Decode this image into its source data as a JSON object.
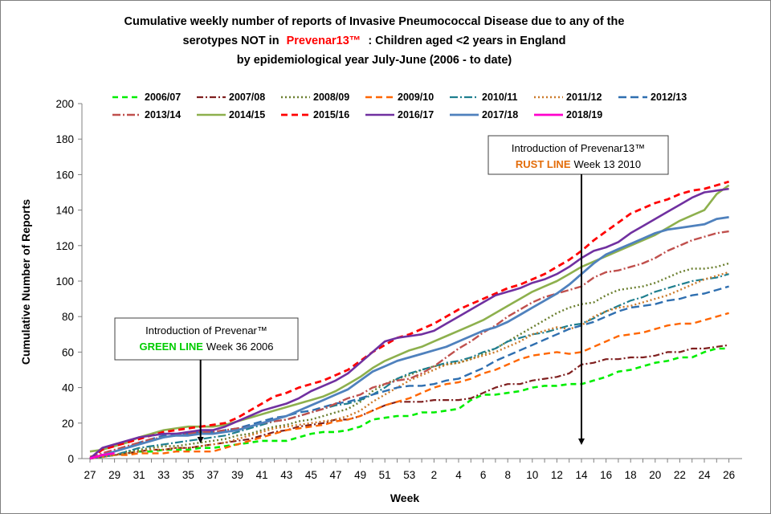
{
  "chart_data": {
    "type": "line",
    "title_lines": [
      "Cumulative weekly number of reports of Invasive Pneumococcal Disease due to any of the",
      "serotypes NOT in",
      "Prevenar13™",
      ": Children aged <2 years in England",
      "by epidemiological year July-June (2006 - to date)"
    ],
    "xlabel": "Week",
    "ylabel": "Cumulative Number of Reports",
    "ylim": [
      0,
      200
    ],
    "yticks": [
      0,
      20,
      40,
      60,
      80,
      100,
      120,
      140,
      160,
      180,
      200
    ],
    "week_sequence": [
      "27",
      "28",
      "29",
      "30",
      "31",
      "32",
      "33",
      "34",
      "35",
      "36",
      "37",
      "38",
      "39",
      "40",
      "41",
      "42",
      "43",
      "44",
      "45",
      "46",
      "47",
      "48",
      "49",
      "50",
      "51",
      "52",
      "53",
      "1",
      "2",
      "3",
      "4",
      "5",
      "6",
      "7",
      "8",
      "9",
      "10",
      "11",
      "12",
      "13",
      "14",
      "15",
      "16",
      "17",
      "18",
      "19",
      "20",
      "21",
      "22",
      "23",
      "24",
      "25",
      "26"
    ],
    "xtick_labels": [
      "27",
      "29",
      "31",
      "33",
      "35",
      "37",
      "39",
      "41",
      "43",
      "45",
      "47",
      "49",
      "51",
      "53",
      "2",
      "4",
      "6",
      "8",
      "10",
      "12",
      "14",
      "16",
      "18",
      "20",
      "22",
      "24",
      "26"
    ],
    "grid": false,
    "legend_position": "top",
    "series": [
      {
        "name": "2006/07",
        "color": "#00ee00",
        "dash": "7,5",
        "width": 2.6,
        "values": [
          0,
          1,
          2,
          3,
          4,
          4,
          5,
          5,
          5,
          6,
          6,
          7,
          8,
          9,
          10,
          10,
          10,
          12,
          14,
          15,
          15,
          16,
          18,
          22,
          23,
          24,
          24,
          26,
          26,
          27,
          28,
          33,
          36,
          36,
          37,
          38,
          40,
          41,
          41,
          42,
          42,
          44,
          46,
          49,
          50,
          52,
          54,
          55,
          57,
          57,
          60,
          62,
          62
        ]
      },
      {
        "name": "2007/08",
        "color": "#7f1f1f",
        "dash": "8,3,2,3",
        "width": 2.2,
        "values": [
          0,
          1,
          2,
          3,
          4,
          5,
          5,
          6,
          6,
          7,
          8,
          9,
          10,
          11,
          13,
          15,
          16,
          18,
          19,
          20,
          22,
          22,
          24,
          27,
          30,
          32,
          32,
          32,
          33,
          33,
          33,
          34,
          37,
          40,
          42,
          42,
          44,
          45,
          46,
          48,
          53,
          54,
          56,
          56,
          57,
          57,
          58,
          60,
          60,
          62,
          62,
          63,
          64
        ]
      },
      {
        "name": "2008/09",
        "color": "#6b7f2f",
        "dash": "2,3",
        "width": 2.4,
        "values": [
          0,
          1,
          2,
          4,
          5,
          6,
          7,
          7,
          8,
          9,
          10,
          11,
          13,
          14,
          16,
          18,
          19,
          21,
          22,
          24,
          26,
          28,
          32,
          38,
          42,
          45,
          47,
          50,
          52,
          53,
          54,
          56,
          59,
          62,
          66,
          70,
          74,
          78,
          82,
          85,
          87,
          88,
          92,
          95,
          96,
          97,
          99,
          102,
          105,
          107,
          107,
          108,
          110
        ]
      },
      {
        "name": "2009/10",
        "color": "#ff6600",
        "dash": "8,5",
        "width": 2.4,
        "values": [
          0,
          1,
          2,
          2,
          3,
          3,
          3,
          4,
          4,
          4,
          4,
          6,
          8,
          10,
          12,
          14,
          16,
          17,
          18,
          19,
          21,
          22,
          24,
          27,
          30,
          32,
          34,
          37,
          40,
          42,
          43,
          45,
          48,
          50,
          53,
          56,
          58,
          59,
          60,
          59,
          60,
          63,
          66,
          69,
          70,
          71,
          73,
          75,
          76,
          76,
          78,
          80,
          82
        ]
      },
      {
        "name": "2010/11",
        "color": "#1f7f8f",
        "dash": "10,3,2,3",
        "width": 2.2,
        "values": [
          0,
          1,
          2,
          4,
          6,
          7,
          8,
          9,
          10,
          11,
          12,
          13,
          15,
          17,
          19,
          21,
          22,
          24,
          26,
          28,
          30,
          31,
          33,
          36,
          40,
          45,
          48,
          50,
          52,
          54,
          55,
          57,
          60,
          62,
          66,
          68,
          70,
          71,
          73,
          75,
          76,
          79,
          83,
          86,
          89,
          91,
          94,
          96,
          98,
          100,
          101,
          102,
          104
        ]
      },
      {
        "name": "2011/12",
        "color": "#cc7a2a",
        "dash": "2,3",
        "width": 2.4,
        "values": [
          0,
          1,
          2,
          3,
          4,
          5,
          5,
          6,
          6,
          7,
          8,
          9,
          11,
          13,
          15,
          17,
          18,
          19,
          20,
          21,
          22,
          24,
          27,
          32,
          36,
          40,
          44,
          47,
          50,
          53,
          54,
          56,
          58,
          60,
          63,
          66,
          70,
          72,
          74,
          73,
          75,
          80,
          83,
          85,
          86,
          88,
          90,
          92,
          95,
          98,
          101,
          103,
          105
        ]
      },
      {
        "name": "2012/13",
        "color": "#2f6fb0",
        "dash": "10,5",
        "width": 2.4,
        "values": [
          0,
          2,
          4,
          6,
          9,
          11,
          13,
          14,
          14,
          15,
          15,
          16,
          17,
          19,
          21,
          23,
          24,
          26,
          27,
          29,
          31,
          32,
          34,
          36,
          38,
          40,
          41,
          41,
          42,
          44,
          45,
          48,
          51,
          55,
          58,
          61,
          64,
          67,
          70,
          73,
          75,
          77,
          80,
          83,
          85,
          86,
          87,
          89,
          90,
          92,
          93,
          95,
          97
        ]
      },
      {
        "name": "2013/14",
        "color": "#c0504d",
        "dash": "10,3,2,3",
        "width": 2.4,
        "values": [
          1,
          3,
          5,
          7,
          9,
          11,
          12,
          13,
          14,
          15,
          15,
          16,
          17,
          18,
          20,
          21,
          22,
          24,
          26,
          28,
          31,
          34,
          36,
          40,
          42,
          44,
          45,
          48,
          52,
          57,
          62,
          66,
          71,
          75,
          80,
          84,
          88,
          91,
          93,
          95,
          97,
          102,
          105,
          106,
          108,
          110,
          113,
          117,
          120,
          123,
          125,
          127,
          128
        ]
      },
      {
        "name": "2014/15",
        "color": "#8db04d",
        "dash": "",
        "width": 2.6,
        "values": [
          4,
          5,
          7,
          9,
          12,
          14,
          16,
          17,
          18,
          18,
          18,
          19,
          21,
          23,
          25,
          27,
          29,
          31,
          33,
          35,
          38,
          42,
          46,
          51,
          55,
          58,
          61,
          63,
          66,
          69,
          72,
          75,
          78,
          82,
          86,
          90,
          94,
          97,
          100,
          104,
          108,
          111,
          114,
          117,
          120,
          123,
          126,
          130,
          134,
          137,
          140,
          149,
          154
        ]
      },
      {
        "name": "2015/16",
        "color": "#ff0000",
        "dash": "8,5",
        "width": 2.8,
        "values": [
          0,
          5,
          7,
          9,
          11,
          13,
          15,
          16,
          17,
          18,
          19,
          20,
          23,
          27,
          31,
          35,
          37,
          40,
          42,
          44,
          47,
          50,
          55,
          60,
          64,
          68,
          70,
          73,
          76,
          80,
          84,
          87,
          90,
          93,
          96,
          98,
          101,
          104,
          108,
          112,
          117,
          123,
          128,
          133,
          138,
          141,
          144,
          146,
          149,
          151,
          152,
          154,
          156
        ]
      },
      {
        "name": "2016/17",
        "color": "#7030a0",
        "dash": "",
        "width": 2.6,
        "values": [
          0,
          6,
          8,
          10,
          12,
          13,
          14,
          14,
          15,
          16,
          16,
          18,
          21,
          24,
          27,
          29,
          31,
          34,
          38,
          41,
          44,
          48,
          54,
          60,
          66,
          68,
          69,
          70,
          72,
          76,
          80,
          84,
          88,
          92,
          94,
          96,
          99,
          101,
          104,
          108,
          113,
          117,
          119,
          122,
          127,
          131,
          135,
          139,
          143,
          147,
          150,
          151,
          152
        ]
      },
      {
        "name": "2017/18",
        "color": "#4f81bd",
        "dash": "",
        "width": 2.8,
        "values": [
          0,
          2,
          4,
          6,
          8,
          10,
          12,
          13,
          13,
          14,
          14,
          15,
          16,
          18,
          20,
          22,
          24,
          27,
          30,
          33,
          36,
          39,
          44,
          49,
          52,
          55,
          57,
          59,
          61,
          63,
          66,
          69,
          72,
          74,
          77,
          81,
          85,
          89,
          93,
          98,
          104,
          110,
          115,
          118,
          121,
          124,
          127,
          129,
          130,
          131,
          132,
          135,
          136
        ]
      },
      {
        "name": "2018/19",
        "color": "#ff00cc",
        "dash": "",
        "width": 2.8,
        "values": [
          0,
          2,
          3
        ]
      }
    ],
    "annotations": [
      {
        "line1": "Introduction of Prevenar™",
        "highlight": "GREEN LINE",
        "highlight_color": "#00cc00",
        "rest": "Week 36 2006",
        "week": "36"
      },
      {
        "line1": "Introduction of Prevenar13™",
        "highlight": "RUST LINE",
        "highlight_color": "#e36c09",
        "rest": "Week 13 2010",
        "week": "14"
      }
    ]
  }
}
